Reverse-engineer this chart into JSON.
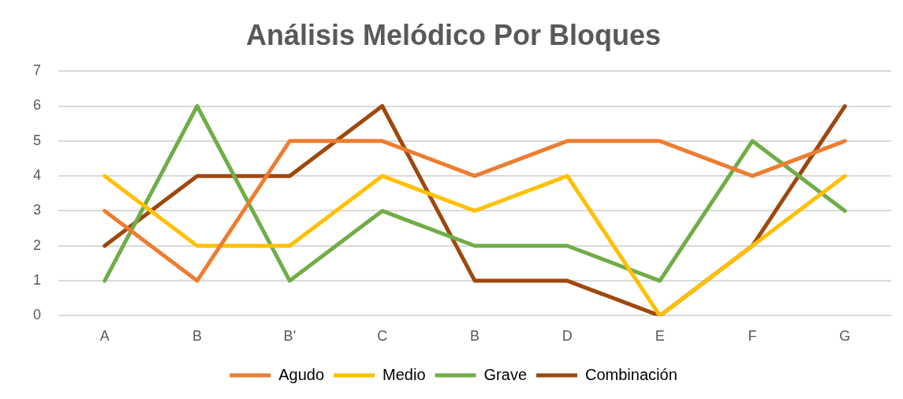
{
  "chart_data": {
    "type": "line",
    "title": "Análisis Melódico Por Bloques",
    "categories": [
      "A",
      "B",
      "B'",
      "C",
      "B",
      "D",
      "E",
      "F",
      "G"
    ],
    "series": [
      {
        "name": "Agudo",
        "color": "#ed7d31",
        "values": [
          3,
          1,
          5,
          5,
          4,
          5,
          5,
          4,
          5
        ]
      },
      {
        "name": "Medio",
        "color": "#ffc000",
        "values": [
          4,
          2,
          2,
          4,
          3,
          4,
          0,
          2,
          4
        ]
      },
      {
        "name": "Grave",
        "color": "#70ad47",
        "values": [
          1,
          6,
          1,
          3,
          2,
          2,
          1,
          5,
          3
        ]
      },
      {
        "name": "Combinación",
        "color": "#9e480e",
        "values": [
          2,
          4,
          4,
          6,
          1,
          1,
          0,
          2,
          6
        ]
      }
    ],
    "ylim": [
      0,
      7
    ],
    "yticks": [
      0,
      1,
      2,
      3,
      4,
      5,
      6,
      7
    ],
    "grid": "y",
    "legend": "bottom",
    "marker": "none",
    "line_style": "solid"
  }
}
